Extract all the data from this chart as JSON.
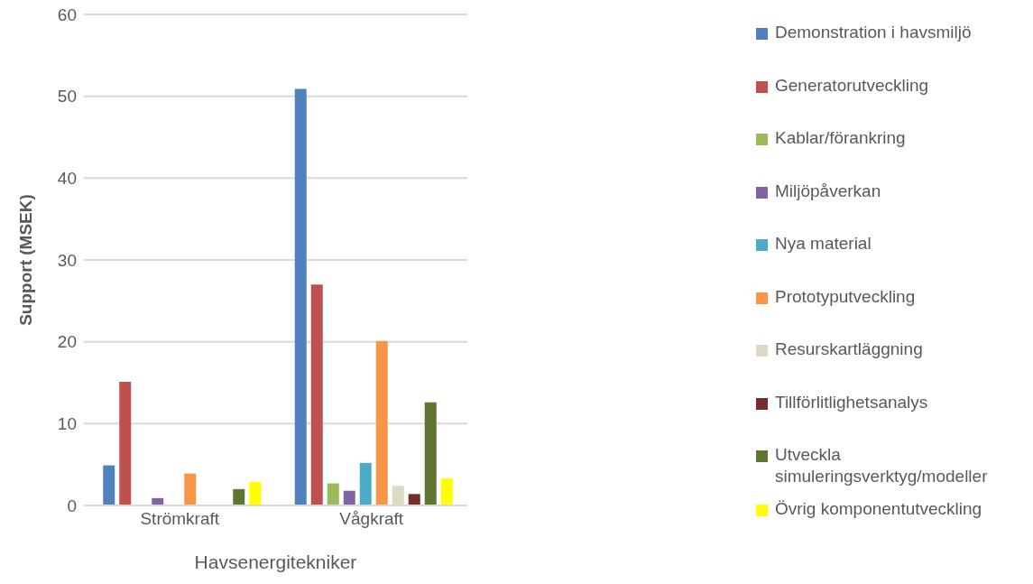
{
  "chart_data": {
    "type": "bar",
    "xlabel": "Havsenergitekniker",
    "ylabel": "Support (MSEK)",
    "categories": [
      "Strömkraft",
      "Vågkraft"
    ],
    "ylim": [
      0,
      60
    ],
    "yticks": [
      0,
      10,
      20,
      30,
      40,
      50,
      60
    ],
    "grid": "y",
    "legend": "right",
    "series": [
      {
        "name": "Demonstration i havsmiljö",
        "color": "#4f81bd",
        "values": [
          4.9,
          50.9
        ]
      },
      {
        "name": "Generatorutveckling",
        "color": "#c0504d",
        "values": [
          15.1,
          27.0
        ]
      },
      {
        "name": "Kablar/förankring",
        "color": "#9bbb59",
        "values": [
          null,
          2.7
        ]
      },
      {
        "name": "Miljöpåverkan",
        "color": "#8064a2",
        "values": [
          0.9,
          1.8
        ]
      },
      {
        "name": "Nya material",
        "color": "#4bacc6",
        "values": [
          null,
          5.2
        ]
      },
      {
        "name": "Prototyputveckling",
        "color": "#f79646",
        "values": [
          3.9,
          20.1
        ]
      },
      {
        "name": "Resurskartläggning",
        "color": "#ddd9c3",
        "values": [
          null,
          2.4
        ]
      },
      {
        "name": "Tillförlitlighetsanalys",
        "color": "#772c2a",
        "values": [
          null,
          1.4
        ]
      },
      {
        "name": "Utveckla simuleringsverktyg/modeller",
        "color": "#5f7530",
        "values": [
          2.0,
          12.6
        ]
      },
      {
        "name": "Övrig komponentutveckling",
        "color": "#ffff00",
        "values": [
          2.9,
          3.3
        ]
      }
    ]
  }
}
